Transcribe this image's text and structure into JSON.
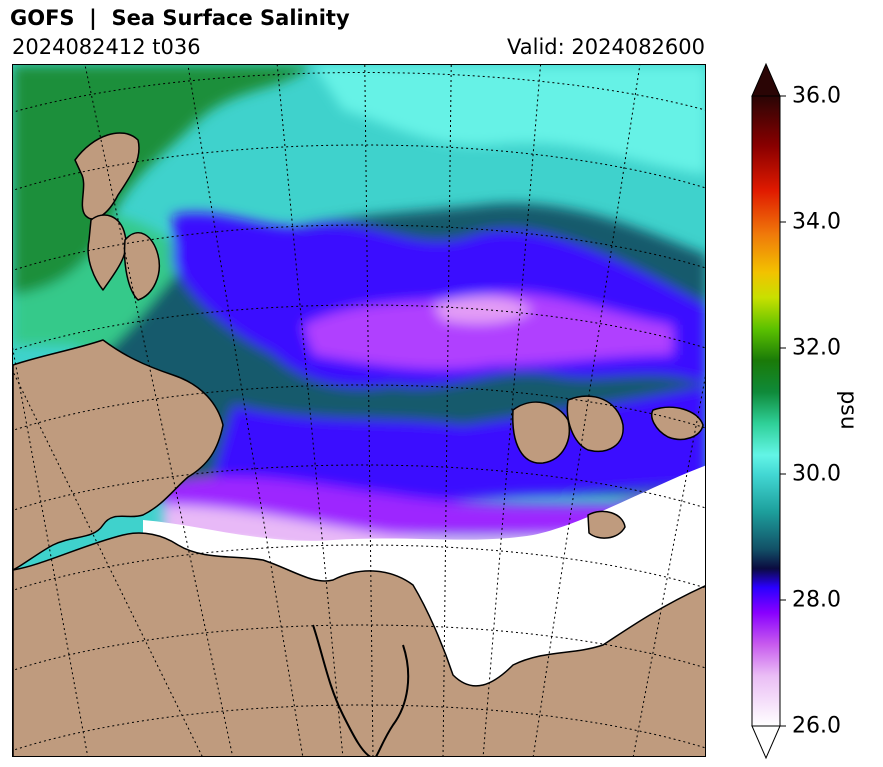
{
  "header": {
    "title": "GOFS  |  Sea Surface Salinity",
    "run": "2024082412 t036",
    "valid": "Valid: 2024082600"
  },
  "map": {
    "variable": "Sea Surface Salinity",
    "projection": "polar stereographic",
    "graticule": "dotted",
    "colors": {
      "land": "#bf9b7e",
      "coast": "#000000",
      "below_min": "#ffffff",
      "frame": "#000000"
    }
  },
  "colorbar": {
    "unit": "psu",
    "min": 26.0,
    "max": 36.0,
    "ticks": [
      "26.0",
      "28.0",
      "30.0",
      "32.0",
      "34.0",
      "36.0"
    ],
    "extend": "both",
    "stops": [
      {
        "v": 26.0,
        "c": "#ffffff"
      },
      {
        "v": 26.8,
        "c": "#eabdf5"
      },
      {
        "v": 27.3,
        "c": "#c75aee"
      },
      {
        "v": 27.8,
        "c": "#8800ff"
      },
      {
        "v": 28.2,
        "c": "#2a00ff"
      },
      {
        "v": 28.5,
        "c": "#0b0b40"
      },
      {
        "v": 28.8,
        "c": "#124f66"
      },
      {
        "v": 29.4,
        "c": "#1d9f9c"
      },
      {
        "v": 30.0,
        "c": "#43d8d4"
      },
      {
        "v": 30.3,
        "c": "#63f5e6"
      },
      {
        "v": 30.8,
        "c": "#2fd098"
      },
      {
        "v": 31.3,
        "c": "#0f8a3a"
      },
      {
        "v": 31.8,
        "c": "#1a7a08"
      },
      {
        "v": 32.3,
        "c": "#5bc100"
      },
      {
        "v": 32.8,
        "c": "#c8e000"
      },
      {
        "v": 33.2,
        "c": "#f2c200"
      },
      {
        "v": 33.8,
        "c": "#f07a0a"
      },
      {
        "v": 34.5,
        "c": "#e01a00"
      },
      {
        "v": 35.2,
        "c": "#8a0000"
      },
      {
        "v": 36.0,
        "c": "#2a0505"
      }
    ]
  }
}
